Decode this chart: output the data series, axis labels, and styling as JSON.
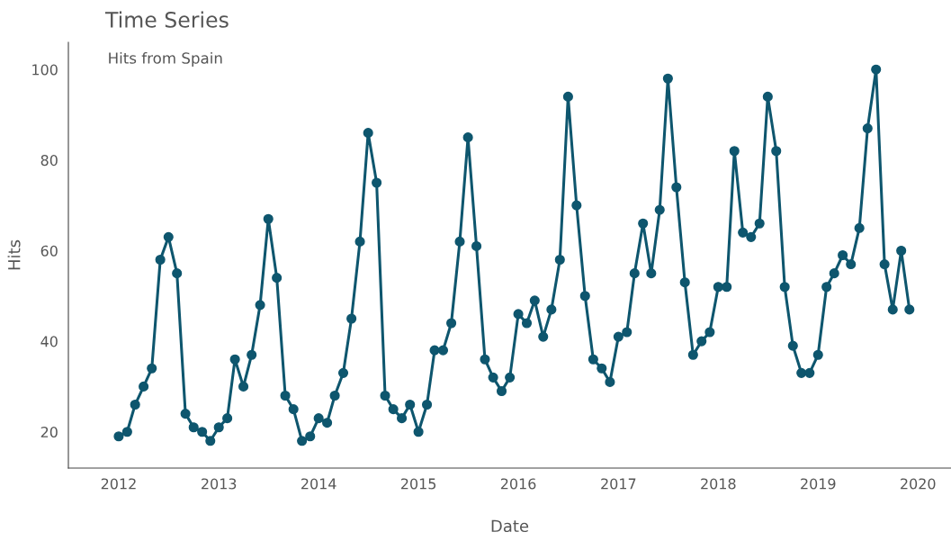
{
  "chart_data": {
    "type": "line",
    "title": "Time Series",
    "subtitle": "Hits from Spain",
    "xlabel": "Date",
    "ylabel": "Hits",
    "x": [
      "2012-01",
      "2012-02",
      "2012-03",
      "2012-04",
      "2012-05",
      "2012-06",
      "2012-07",
      "2012-08",
      "2012-09",
      "2012-10",
      "2012-11",
      "2012-12",
      "2013-01",
      "2013-02",
      "2013-03",
      "2013-04",
      "2013-05",
      "2013-06",
      "2013-07",
      "2013-08",
      "2013-09",
      "2013-10",
      "2013-11",
      "2013-12",
      "2014-01",
      "2014-02",
      "2014-03",
      "2014-04",
      "2014-05",
      "2014-06",
      "2014-07",
      "2014-08",
      "2014-09",
      "2014-10",
      "2014-11",
      "2014-12",
      "2015-01",
      "2015-02",
      "2015-03",
      "2015-04",
      "2015-05",
      "2015-06",
      "2015-07",
      "2015-08",
      "2015-09",
      "2015-10",
      "2015-11",
      "2015-12",
      "2016-01",
      "2016-02",
      "2016-03",
      "2016-04",
      "2016-05",
      "2016-06",
      "2016-07",
      "2016-08",
      "2016-09",
      "2016-10",
      "2016-11",
      "2016-12",
      "2017-01",
      "2017-02",
      "2017-03",
      "2017-04",
      "2017-05",
      "2017-06",
      "2017-07",
      "2017-08",
      "2017-09",
      "2017-10",
      "2017-11",
      "2017-12",
      "2018-01",
      "2018-02",
      "2018-03",
      "2018-04",
      "2018-05",
      "2018-06",
      "2018-07",
      "2018-08",
      "2018-09",
      "2018-10",
      "2018-11",
      "2018-12",
      "2019-01",
      "2019-02",
      "2019-03",
      "2019-04",
      "2019-05",
      "2019-06",
      "2019-07",
      "2019-08",
      "2019-09",
      "2019-10",
      "2019-11",
      "2019-12"
    ],
    "series": [
      {
        "color": "#0e566e",
        "values": [
          19,
          20,
          26,
          30,
          34,
          58,
          63,
          55,
          24,
          21,
          20,
          18,
          21,
          23,
          36,
          30,
          37,
          48,
          67,
          54,
          28,
          25,
          18,
          19,
          23,
          22,
          28,
          33,
          45,
          62,
          86,
          75,
          28,
          25,
          23,
          26,
          20,
          26,
          38,
          38,
          44,
          62,
          85,
          61,
          36,
          32,
          29,
          32,
          46,
          44,
          49,
          41,
          47,
          58,
          94,
          70,
          50,
          36,
          34,
          31,
          41,
          42,
          55,
          66,
          55,
          69,
          98,
          74,
          53,
          37,
          40,
          42,
          52,
          52,
          82,
          64,
          63,
          66,
          94,
          82,
          52,
          39,
          33,
          33,
          37,
          52,
          55,
          59,
          57,
          65,
          87,
          100,
          57,
          47,
          60,
          47
        ]
      }
    ],
    "xlim": [
      "2011-07-01",
      "2020-05-01"
    ],
    "xticks": [
      {
        "value": "2012-01-01",
        "label": "2012"
      },
      {
        "value": "2013-01-01",
        "label": "2013"
      },
      {
        "value": "2014-01-01",
        "label": "2014"
      },
      {
        "value": "2015-01-01",
        "label": "2015"
      },
      {
        "value": "2016-01-01",
        "label": "2016"
      },
      {
        "value": "2017-01-01",
        "label": "2017"
      },
      {
        "value": "2018-01-01",
        "label": "2018"
      },
      {
        "value": "2019-01-01",
        "label": "2019"
      },
      {
        "value": "2020-01-01",
        "label": "2020"
      }
    ],
    "ylim": [
      12,
      106
    ],
    "yticks": [
      20,
      40,
      60,
      80,
      100
    ],
    "grid": false,
    "marker": "circle",
    "line_style": "solid"
  }
}
